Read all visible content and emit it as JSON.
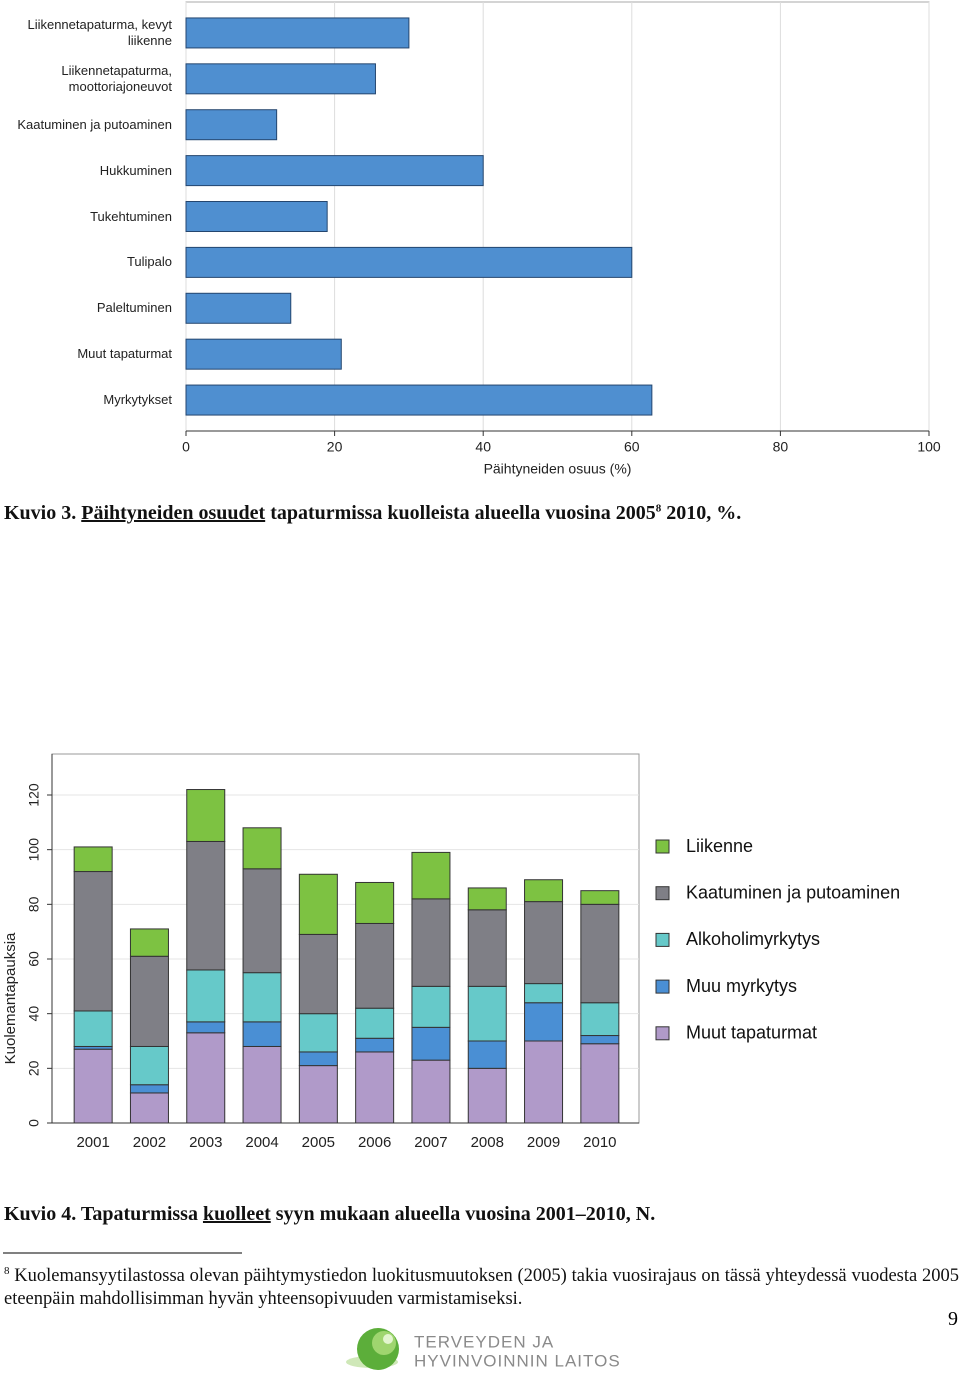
{
  "chart_data": [
    {
      "type": "bar",
      "orientation": "horizontal",
      "x_label": "Päihtyneiden osuus (%)",
      "categories": [
        "Liikennetapaturma, kevyt liikenne",
        "Liikennetapaturma, moottoriajoneuvot",
        "Kaatuminen ja putoaminen",
        "Hukkuminen",
        "Tukehtuminen",
        "Tulipalo",
        "Paleltuminen",
        "Muut tapaturmat",
        "Myrkytykset"
      ],
      "values": [
        30,
        25.5,
        12.2,
        40,
        19,
        60,
        14.1,
        20.9,
        62.7
      ],
      "color": "#4f8fd0",
      "xlim": [
        0,
        100
      ],
      "xticks": [
        0,
        20,
        40,
        60,
        80,
        100
      ],
      "grid": true
    },
    {
      "type": "stacked_bar",
      "y_label": "Kuolemantapauksia",
      "categories": [
        "2001",
        "2002",
        "2003",
        "2004",
        "2005",
        "2006",
        "2007",
        "2008",
        "2009",
        "2010"
      ],
      "series": [
        {
          "name": "Muut tapaturmat",
          "color": "#b09ac9",
          "values": [
            27,
            11,
            33,
            28,
            21,
            26,
            23,
            20,
            30,
            29
          ]
        },
        {
          "name": "Muu myrkytys",
          "color": "#4a8fd4",
          "values": [
            1,
            3,
            4,
            9,
            5,
            5,
            12,
            10,
            14,
            3
          ]
        },
        {
          "name": "Alkoholimyrkytys",
          "color": "#66c9c9",
          "values": [
            13,
            14,
            19,
            18,
            14,
            11,
            15,
            20,
            7,
            12
          ]
        },
        {
          "name": "Kaatuminen ja putoaminen",
          "color": "#7f7f86",
          "values": [
            51,
            33,
            47,
            38,
            29,
            31,
            32,
            28,
            30,
            36
          ]
        },
        {
          "name": "Liikenne",
          "color": "#7dc242",
          "values": [
            9,
            10,
            19,
            15,
            22,
            15,
            17,
            8,
            8,
            5
          ]
        }
      ],
      "ylim": [
        0,
        135
      ],
      "yticks": [
        0,
        20,
        40,
        60,
        80,
        100,
        120
      ],
      "grid": true,
      "legend": "right"
    }
  ],
  "document": {
    "caption3": {
      "prefix": "Kuvio 3. ",
      "underlined": "Päihtyneiden osuudet",
      "middle": " tapaturmissa kuolleista alueella vuosina 2005",
      "sup": "8",
      "suffix": " 2010, %."
    },
    "caption4": {
      "prefix": "Kuvio 4. Tapaturmissa ",
      "underlined": "kuolleet",
      "suffix": " syyn mukaan alueella vuosina 2001–2010, N."
    },
    "footnote": {
      "mark": "8",
      "text": " Kuolemansyytilastossa olevan päihtymystiedon luokitusmuutoksen (2005) takia vuosirajaus on tässä yhteydessä vuodesta 2005 eteenpäin mahdollisimman hyvän yhteensopivuuden varmistamiseksi."
    },
    "page_number": "9",
    "logo": {
      "line1": "TERVEYDEN JA",
      "line2": "HYVINVOINNIN LAITOS"
    }
  }
}
